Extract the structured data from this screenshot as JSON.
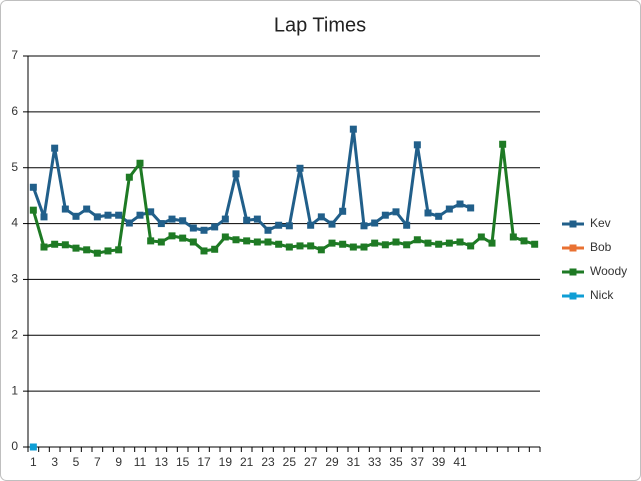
{
  "chart_data": {
    "type": "line",
    "title": "Lap Times",
    "categories": [
      "1",
      "2",
      "3",
      "4",
      "5",
      "6",
      "7",
      "8",
      "9",
      "10",
      "11",
      "12",
      "13",
      "14",
      "15",
      "16",
      "17",
      "18",
      "19",
      "20",
      "21",
      "22",
      "23",
      "24",
      "25",
      "26",
      "27",
      "28",
      "29",
      "30",
      "31",
      "32",
      "33",
      "34",
      "35",
      "36",
      "37",
      "38",
      "39",
      "40",
      "41",
      "42",
      null,
      null,
      null,
      null,
      null,
      null
    ],
    "label_interval": 2,
    "series": [
      {
        "name": "Kev",
        "color": "#215f8a",
        "values": [
          4.65,
          4.12,
          5.35,
          4.26,
          4.13,
          4.26,
          4.12,
          4.15,
          4.15,
          4.01,
          4.15,
          4.21,
          4.0,
          4.08,
          4.05,
          3.92,
          3.88,
          3.94,
          4.08,
          4.89,
          4.06,
          4.08,
          3.88,
          3.97,
          3.96,
          4.99,
          3.97,
          4.12,
          3.99,
          4.22,
          5.69,
          3.96,
          4.01,
          4.15,
          4.21,
          3.97,
          5.41,
          4.19,
          4.13,
          4.26,
          4.35,
          4.28,
          null,
          null,
          null,
          null,
          null,
          null
        ]
      },
      {
        "name": "Bob",
        "color": "#e97132",
        "values": [
          null,
          null,
          null,
          null,
          null,
          null,
          null,
          null,
          null,
          null,
          null,
          null,
          null,
          null,
          null,
          null,
          null,
          null,
          null,
          null,
          null,
          null,
          null,
          null,
          null,
          null,
          null,
          null,
          null,
          null,
          null,
          null,
          null,
          null,
          null,
          null,
          null,
          null,
          null,
          null,
          null,
          null,
          null,
          null,
          null,
          null,
          null,
          null
        ]
      },
      {
        "name": "Woody",
        "color": "#1e7a24",
        "values": [
          4.24,
          3.58,
          3.63,
          3.62,
          3.56,
          3.53,
          3.47,
          3.51,
          3.53,
          4.83,
          5.08,
          3.69,
          3.67,
          3.78,
          3.74,
          3.67,
          3.51,
          3.54,
          3.76,
          3.71,
          3.69,
          3.67,
          3.67,
          3.63,
          3.58,
          3.6,
          3.6,
          3.53,
          3.65,
          3.63,
          3.58,
          3.58,
          3.65,
          3.62,
          3.67,
          3.62,
          3.71,
          3.65,
          3.63,
          3.65,
          3.67,
          3.6,
          3.76,
          3.65,
          5.42,
          3.76,
          3.69,
          3.63
        ]
      },
      {
        "name": "Nick",
        "color": "#0f9ed5",
        "values": [
          0,
          null,
          null,
          null,
          null,
          null,
          null,
          null,
          null,
          null,
          null,
          null,
          null,
          null,
          null,
          null,
          null,
          null,
          null,
          null,
          null,
          null,
          null,
          null,
          null,
          null,
          null,
          null,
          null,
          null,
          null,
          null,
          null,
          null,
          null,
          null,
          null,
          null,
          null,
          null,
          null,
          null,
          null,
          null,
          null,
          null,
          null,
          null
        ]
      }
    ],
    "ylim": [
      0,
      7
    ],
    "yticks": [
      0,
      1,
      2,
      3,
      4,
      5,
      6,
      7
    ],
    "grid": true,
    "legend": "right"
  }
}
